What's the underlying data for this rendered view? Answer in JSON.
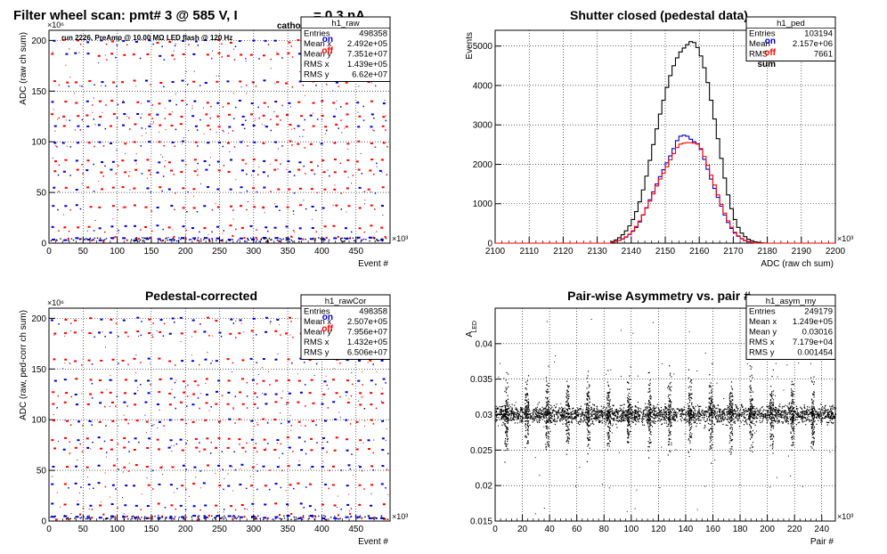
{
  "chart_data": [
    {
      "id": "raw",
      "type": "scatter",
      "title": "Filter wheel scan: pmt#   3 @   585 V, I",
      "title_sub": "cathode",
      "title_tail": "= 0.3 nA",
      "subtitle": "run 2226, PreAmp @ 10.00 MΩ LED flash @  120 Hz",
      "xlabel": "Event #",
      "ylabel": "ADC (raw ch sum)",
      "x_exponent": "×10³",
      "y_exponent": "×10⁶",
      "xlim": [
        0,
        500
      ],
      "ylim": [
        0,
        210
      ],
      "xticks": [
        0,
        50,
        100,
        150,
        200,
        250,
        300,
        350,
        400,
        450
      ],
      "yticks": [
        0,
        50,
        100,
        150,
        200
      ],
      "grid": true,
      "legend": [
        "on",
        "off"
      ],
      "legend_colors": [
        "#0000cc",
        "#ff0000"
      ],
      "levels": [
        200,
        187,
        160,
        140,
        127,
        117,
        100,
        82,
        72,
        55,
        37,
        17,
        5
      ],
      "stats": {
        "name": "h1_raw",
        "rows": [
          [
            "Entries",
            "498358"
          ],
          [
            "Mean x",
            "2.492e+05"
          ],
          [
            "Mean y",
            "7.351e+07"
          ],
          [
            "RMS x",
            "1.439e+05"
          ],
          [
            "RMS y",
            "6.62e+07"
          ]
        ]
      }
    },
    {
      "id": "ped",
      "type": "line",
      "title": "Shutter closed (pedestal data)",
      "xlabel": "ADC (raw ch sum)",
      "ylabel": "Events",
      "x_exponent": "×10³",
      "xlim": [
        2100,
        2200
      ],
      "ylim": [
        0,
        5400
      ],
      "xticks": [
        2100,
        2110,
        2120,
        2130,
        2140,
        2150,
        2160,
        2170,
        2180,
        2190,
        2200
      ],
      "yticks": [
        0,
        1000,
        2000,
        3000,
        4000,
        5000
      ],
      "grid": true,
      "legend": [
        "on",
        "off",
        "sum"
      ],
      "legend_colors": [
        "#0000cc",
        "#ff0000",
        "#000000"
      ],
      "series": [
        {
          "name": "sum",
          "color": "#000000",
          "x": [
            2134,
            2136,
            2138,
            2140,
            2142,
            2144,
            2146,
            2148,
            2150,
            2152,
            2154,
            2156,
            2158,
            2160,
            2162,
            2164,
            2166,
            2168,
            2170,
            2172,
            2174,
            2176,
            2178,
            2180
          ],
          "y": [
            20,
            100,
            250,
            500,
            900,
            1500,
            2300,
            3100,
            3800,
            4400,
            4800,
            5000,
            5150,
            4900,
            4300,
            3400,
            2400,
            1400,
            700,
            300,
            120,
            40,
            10,
            0
          ]
        },
        {
          "name": "on",
          "color": "#0000cc",
          "x": [
            2134,
            2136,
            2138,
            2140,
            2142,
            2144,
            2146,
            2148,
            2150,
            2152,
            2154,
            2156,
            2158,
            2160,
            2162,
            2164,
            2166,
            2168,
            2170,
            2172,
            2174,
            2176
          ],
          "y": [
            10,
            50,
            120,
            250,
            450,
            800,
            1200,
            1600,
            1950,
            2300,
            2700,
            2750,
            2600,
            2500,
            2000,
            1500,
            1050,
            600,
            300,
            130,
            40,
            10
          ]
        },
        {
          "name": "off",
          "color": "#ff0000",
          "x": [
            2134,
            2136,
            2138,
            2140,
            2142,
            2144,
            2146,
            2148,
            2150,
            2152,
            2154,
            2156,
            2158,
            2160,
            2162,
            2164,
            2166,
            2168,
            2170,
            2172,
            2174,
            2176
          ],
          "y": [
            10,
            50,
            130,
            260,
            480,
            800,
            1150,
            1550,
            1850,
            2200,
            2500,
            2550,
            2550,
            2500,
            2100,
            1600,
            1100,
            650,
            320,
            140,
            50,
            10
          ]
        }
      ],
      "stats": {
        "name": "h1_ped",
        "rows": [
          [
            "Entries",
            "103194"
          ],
          [
            "Mean",
            "2.157e+06"
          ],
          [
            "RMS",
            "7661"
          ]
        ]
      }
    },
    {
      "id": "cor",
      "type": "scatter",
      "title": "Pedestal-corrected",
      "xlabel": "Event #",
      "ylabel": "ADC (raw, ped-corr ch sum)",
      "x_exponent": "×10³",
      "y_exponent": "×10⁶",
      "xlim": [
        0,
        500
      ],
      "ylim": [
        0,
        210
      ],
      "xticks": [
        0,
        50,
        100,
        150,
        200,
        250,
        300,
        350,
        400,
        450
      ],
      "yticks": [
        0,
        50,
        100,
        150,
        200
      ],
      "grid": true,
      "legend": [
        "on",
        "off"
      ],
      "legend_colors": [
        "#0000cc",
        "#ff0000"
      ],
      "levels": [
        200,
        187,
        160,
        140,
        127,
        117,
        100,
        82,
        72,
        55,
        37,
        17,
        5
      ],
      "stats": {
        "name": "h1_rawCor",
        "rows": [
          [
            "Entries",
            "498358"
          ],
          [
            "Mean x",
            "2.507e+05"
          ],
          [
            "Mean y",
            "7.956e+07"
          ],
          [
            "RMS x",
            "1.432e+05"
          ],
          [
            "RMS y",
            "6.506e+07"
          ]
        ]
      }
    },
    {
      "id": "asym",
      "type": "scatter",
      "title": "Pair-wise Asymmetry vs. pair #",
      "xlabel": "Pair #",
      "ylabel": "A",
      "ylabel_sub": "LED",
      "x_exponent": "×10³",
      "xlim": [
        0,
        250
      ],
      "ylim": [
        0.015,
        0.045
      ],
      "xticks": [
        0,
        20,
        40,
        60,
        80,
        100,
        120,
        140,
        160,
        180,
        200,
        220,
        240
      ],
      "yticks": [
        0.015,
        0.02,
        0.025,
        0.03,
        0.035,
        0.04
      ],
      "grid": true,
      "band_center": 0.0301,
      "spikes_x": [
        8,
        23,
        38,
        53,
        68,
        83,
        98,
        113,
        128,
        143,
        158,
        173,
        188,
        203,
        218,
        233
      ],
      "stats": {
        "name": "h1_asym_my",
        "rows": [
          [
            "Entries",
            "249179"
          ],
          [
            "Mean x",
            "1.249e+05"
          ],
          [
            "Mean y",
            "0.03016"
          ],
          [
            "RMS x",
            "7.179e+04"
          ],
          [
            "RMS y",
            "0.001454"
          ]
        ]
      }
    }
  ]
}
